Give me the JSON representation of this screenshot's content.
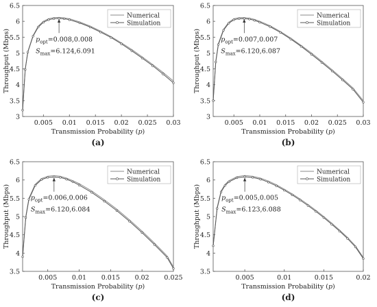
{
  "chart_data": [
    {
      "type": "line",
      "panel_label": "(a)",
      "xlabel": "Transmission Probability (",
      "xlabel_var": "p",
      "xlabel_end": ")",
      "ylabel": "Throughput (Mbps)",
      "xlim": [
        0.001,
        0.03
      ],
      "ylim": [
        3,
        6.5
      ],
      "xticks": [
        0.005,
        0.01,
        0.015,
        0.02,
        0.025,
        0.03
      ],
      "xtick_labels": [
        "0.005",
        "0.01",
        "0.015",
        "0.02",
        "0.025",
        "0.03"
      ],
      "yticks": [
        3,
        3.5,
        4,
        4.5,
        5,
        5.5,
        6,
        6.5
      ],
      "ytick_labels": [
        "3",
        "3.5",
        "4",
        "4.5",
        "5",
        "5.5",
        "6",
        "6.5"
      ],
      "legend_position": "top-right",
      "annotation": {
        "p_opt": "=0.008,0.008",
        "s_max": "=6.124,6.091",
        "arrow_x": 0.008,
        "arrow_y_from": 5.63,
        "arrow_y_to": 6.07
      },
      "series": [
        {
          "name": "Numerical",
          "x": [
            0.001,
            0.0015,
            0.002,
            0.003,
            0.004,
            0.005,
            0.006,
            0.007,
            0.008,
            0.009,
            0.01,
            0.012,
            0.014,
            0.016,
            0.018,
            0.02,
            0.022,
            0.024,
            0.026,
            0.028,
            0.03
          ],
          "y": [
            3.2,
            4.5,
            5.05,
            5.55,
            5.85,
            6.0,
            6.08,
            6.115,
            6.124,
            6.11,
            6.08,
            5.98,
            5.85,
            5.69,
            5.52,
            5.32,
            5.11,
            4.88,
            4.64,
            4.39,
            4.12
          ]
        },
        {
          "name": "Simulation",
          "x": [
            0.001,
            0.0015,
            0.002,
            0.003,
            0.004,
            0.005,
            0.006,
            0.007,
            0.008,
            0.009,
            0.01,
            0.012,
            0.014,
            0.016,
            0.018,
            0.02,
            0.022,
            0.024,
            0.026,
            0.028,
            0.03
          ],
          "y": [
            3.2,
            4.48,
            5.03,
            5.53,
            5.82,
            5.97,
            6.05,
            6.085,
            6.091,
            6.08,
            6.05,
            5.95,
            5.82,
            5.66,
            5.49,
            5.29,
            5.07,
            4.84,
            4.6,
            4.34,
            4.06
          ]
        }
      ]
    },
    {
      "type": "line",
      "panel_label": "(b)",
      "xlabel": "Transmission Probability (",
      "xlabel_var": "p",
      "xlabel_end": ")",
      "ylabel": "Throughput (Mbps)",
      "xlim": [
        0.001,
        0.03
      ],
      "ylim": [
        3,
        6.5
      ],
      "xticks": [
        0.005,
        0.01,
        0.015,
        0.02,
        0.025,
        0.03
      ],
      "xtick_labels": [
        "0.005",
        "0.01",
        "0.015",
        "0.02",
        "0.025",
        "0.03"
      ],
      "yticks": [
        3,
        3.5,
        4,
        4.5,
        5,
        5.5,
        6,
        6.5
      ],
      "ytick_labels": [
        "3",
        "3.5",
        "4",
        "4.5",
        "5",
        "5.5",
        "6",
        "6.5"
      ],
      "legend_position": "top-right",
      "annotation": {
        "p_opt": "=0.007,0.007",
        "s_max": "=6.120,6.087",
        "arrow_x": 0.007,
        "arrow_y_from": 5.63,
        "arrow_y_to": 6.07
      },
      "series": [
        {
          "name": "Numerical",
          "x": [
            0.001,
            0.0015,
            0.002,
            0.003,
            0.004,
            0.005,
            0.006,
            0.007,
            0.008,
            0.009,
            0.01,
            0.012,
            0.014,
            0.016,
            0.018,
            0.02,
            0.022,
            0.024,
            0.026,
            0.028,
            0.03
          ],
          "y": [
            3.5,
            4.75,
            5.3,
            5.75,
            5.97,
            6.08,
            6.115,
            6.12,
            6.1,
            6.06,
            6.0,
            5.86,
            5.68,
            5.47,
            5.24,
            5.0,
            4.74,
            4.47,
            4.19,
            3.9,
            3.5
          ]
        },
        {
          "name": "Simulation",
          "x": [
            0.001,
            0.0015,
            0.002,
            0.003,
            0.004,
            0.005,
            0.006,
            0.007,
            0.008,
            0.009,
            0.01,
            0.012,
            0.014,
            0.016,
            0.018,
            0.02,
            0.022,
            0.024,
            0.026,
            0.028,
            0.03
          ],
          "y": [
            3.5,
            4.72,
            5.27,
            5.72,
            5.94,
            6.05,
            6.083,
            6.087,
            6.07,
            6.03,
            5.97,
            5.83,
            5.65,
            5.44,
            5.21,
            4.96,
            4.7,
            4.43,
            4.15,
            3.86,
            3.45
          ]
        }
      ]
    },
    {
      "type": "line",
      "panel_label": "(c)",
      "xlabel": "Transmission Probability (",
      "xlabel_var": "p",
      "xlabel_end": ")",
      "ylabel": "Throughput (Mbps)",
      "xlim": [
        0.001,
        0.025
      ],
      "ylim": [
        3.5,
        6.5
      ],
      "xticks": [
        0.005,
        0.01,
        0.015,
        0.02,
        0.025
      ],
      "xtick_labels": [
        "0.005",
        "0.01",
        "0.015",
        "0.02",
        "0.025"
      ],
      "yticks": [
        3.5,
        4,
        4.5,
        5,
        5.5,
        6,
        6.5
      ],
      "ytick_labels": [
        "3.5",
        "4",
        "4.5",
        "5",
        "5.5",
        "6",
        "6.5"
      ],
      "legend_position": "top-right",
      "annotation": {
        "p_opt": "=0.006,0.006",
        "s_max": "=6.120,6.084",
        "arrow_x": 0.006,
        "arrow_y_from": 5.68,
        "arrow_y_to": 6.06
      },
      "series": [
        {
          "name": "Numerical",
          "x": [
            0.001,
            0.0015,
            0.002,
            0.003,
            0.004,
            0.005,
            0.006,
            0.007,
            0.008,
            0.009,
            0.01,
            0.012,
            0.014,
            0.016,
            0.018,
            0.02,
            0.022,
            0.024,
            0.025
          ],
          "y": [
            3.9,
            5.0,
            5.5,
            5.88,
            6.04,
            6.1,
            6.12,
            6.1,
            6.05,
            5.98,
            5.9,
            5.7,
            5.46,
            5.2,
            4.91,
            4.6,
            4.27,
            3.92,
            3.62
          ]
        },
        {
          "name": "Simulation",
          "x": [
            0.001,
            0.0015,
            0.002,
            0.003,
            0.004,
            0.005,
            0.006,
            0.007,
            0.008,
            0.009,
            0.01,
            0.012,
            0.014,
            0.016,
            0.018,
            0.02,
            0.022,
            0.024,
            0.025
          ],
          "y": [
            3.9,
            4.97,
            5.47,
            5.85,
            6.01,
            6.07,
            6.084,
            6.07,
            6.02,
            5.95,
            5.86,
            5.66,
            5.42,
            5.16,
            4.87,
            4.56,
            4.23,
            3.88,
            3.58
          ]
        }
      ]
    },
    {
      "type": "line",
      "panel_label": "(d)",
      "xlabel": "Transmission Probability (",
      "xlabel_var": "p",
      "xlabel_end": ")",
      "ylabel": "Throughput (Mbps)",
      "xlim": [
        0.001,
        0.02
      ],
      "ylim": [
        3.5,
        6.5
      ],
      "xticks": [
        0.005,
        0.01,
        0.015,
        0.02
      ],
      "xtick_labels": [
        "0.005",
        "0.01",
        "0.015",
        "0.02"
      ],
      "yticks": [
        3.5,
        4,
        4.5,
        5,
        5.5,
        6,
        6.5
      ],
      "ytick_labels": [
        "3.5",
        "4",
        "4.5",
        "5",
        "5.5",
        "6",
        "6.5"
      ],
      "legend_position": "top-right",
      "annotation": {
        "p_opt": "=0.005,0.005",
        "s_max": "=6.123,6.088",
        "arrow_x": 0.005,
        "arrow_y_from": 5.68,
        "arrow_y_to": 6.06
      },
      "series": [
        {
          "name": "Numerical",
          "x": [
            0.001,
            0.0015,
            0.002,
            0.0025,
            0.003,
            0.004,
            0.005,
            0.006,
            0.007,
            0.008,
            0.009,
            0.01,
            0.011,
            0.012,
            0.013,
            0.014,
            0.015,
            0.016,
            0.017,
            0.018,
            0.019,
            0.02
          ],
          "y": [
            4.2,
            5.25,
            5.7,
            5.88,
            5.98,
            6.09,
            6.123,
            6.1,
            6.05,
            5.97,
            5.87,
            5.75,
            5.62,
            5.48,
            5.33,
            5.17,
            5.0,
            4.82,
            4.63,
            4.43,
            4.2,
            3.88
          ]
        },
        {
          "name": "Simulation",
          "x": [
            0.001,
            0.0015,
            0.002,
            0.0025,
            0.003,
            0.004,
            0.005,
            0.006,
            0.007,
            0.008,
            0.009,
            0.01,
            0.011,
            0.012,
            0.013,
            0.014,
            0.015,
            0.016,
            0.017,
            0.018,
            0.019,
            0.02
          ],
          "y": [
            4.2,
            5.22,
            5.67,
            5.85,
            5.95,
            6.06,
            6.088,
            6.07,
            6.02,
            5.94,
            5.84,
            5.72,
            5.59,
            5.45,
            5.3,
            5.14,
            4.97,
            4.79,
            4.6,
            4.4,
            4.17,
            3.85
          ]
        }
      ]
    }
  ]
}
